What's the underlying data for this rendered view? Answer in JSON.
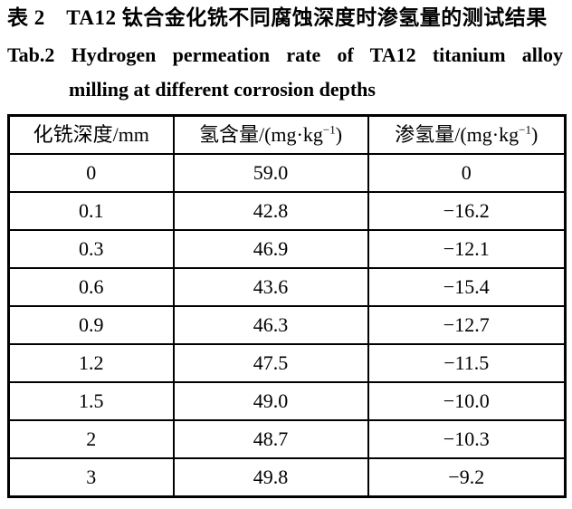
{
  "title": {
    "cn": "表 2　TA12 钛合金化铣不同腐蚀深度时渗氢量的测试结果",
    "en_line1": "Tab.2 Hydrogen permeation rate of TA12 titanium alloy",
    "en_line2": "milling at different corrosion depths"
  },
  "table": {
    "headers": [
      {
        "text": "化铣深度/mm"
      },
      {
        "base": "氢含量/(mg·kg",
        "sup": "−1",
        "close": ")"
      },
      {
        "base": "渗氢量/(mg·kg",
        "sup": "−1",
        "close": ")"
      }
    ],
    "rows": [
      [
        "0",
        "59.0",
        "0"
      ],
      [
        "0.1",
        "42.8",
        "−16.2"
      ],
      [
        "0.3",
        "46.9",
        "−12.1"
      ],
      [
        "0.6",
        "43.6",
        "−15.4"
      ],
      [
        "0.9",
        "46.3",
        "−12.7"
      ],
      [
        "1.2",
        "47.5",
        "−11.5"
      ],
      [
        "1.5",
        "49.0",
        "−10.0"
      ],
      [
        "2",
        "48.7",
        "−10.3"
      ],
      [
        "3",
        "49.8",
        "−9.2"
      ]
    ]
  }
}
